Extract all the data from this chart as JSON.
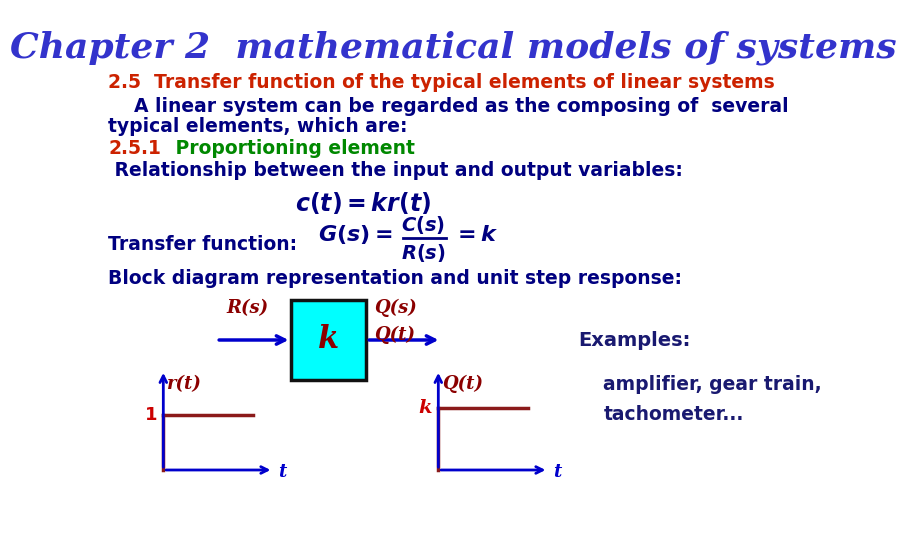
{
  "title": "Chapter 2  mathematical models of systems",
  "title_color": "#3333CC",
  "title_fontsize": 26,
  "bg_color": "#FFFFFF",
  "line1": "2.5  Transfer function of the typical elements of linear systems",
  "line1_color": "#CC2200",
  "line2a": "    A linear system can be regarded as the composing of  several",
  "line2b": "typical elements, which are:",
  "line2_color": "#000080",
  "line3_num": "2.5.1",
  "line3_num_color": "#CC2200",
  "line3_text": "   Proportioning element",
  "line3_text_color": "#008800",
  "line4": " Relationship between the input and output variables:",
  "line4_color": "#000080",
  "text_fontsize": 13.5,
  "formula_color": "#000080",
  "block_color": "#00FFFF",
  "block_border_color": "#111111",
  "arrow_color": "#0000CC",
  "dark_red": "#8B0000",
  "red": "#CC0000",
  "examples_color": "#191970",
  "block_label_color": "#8B0000"
}
